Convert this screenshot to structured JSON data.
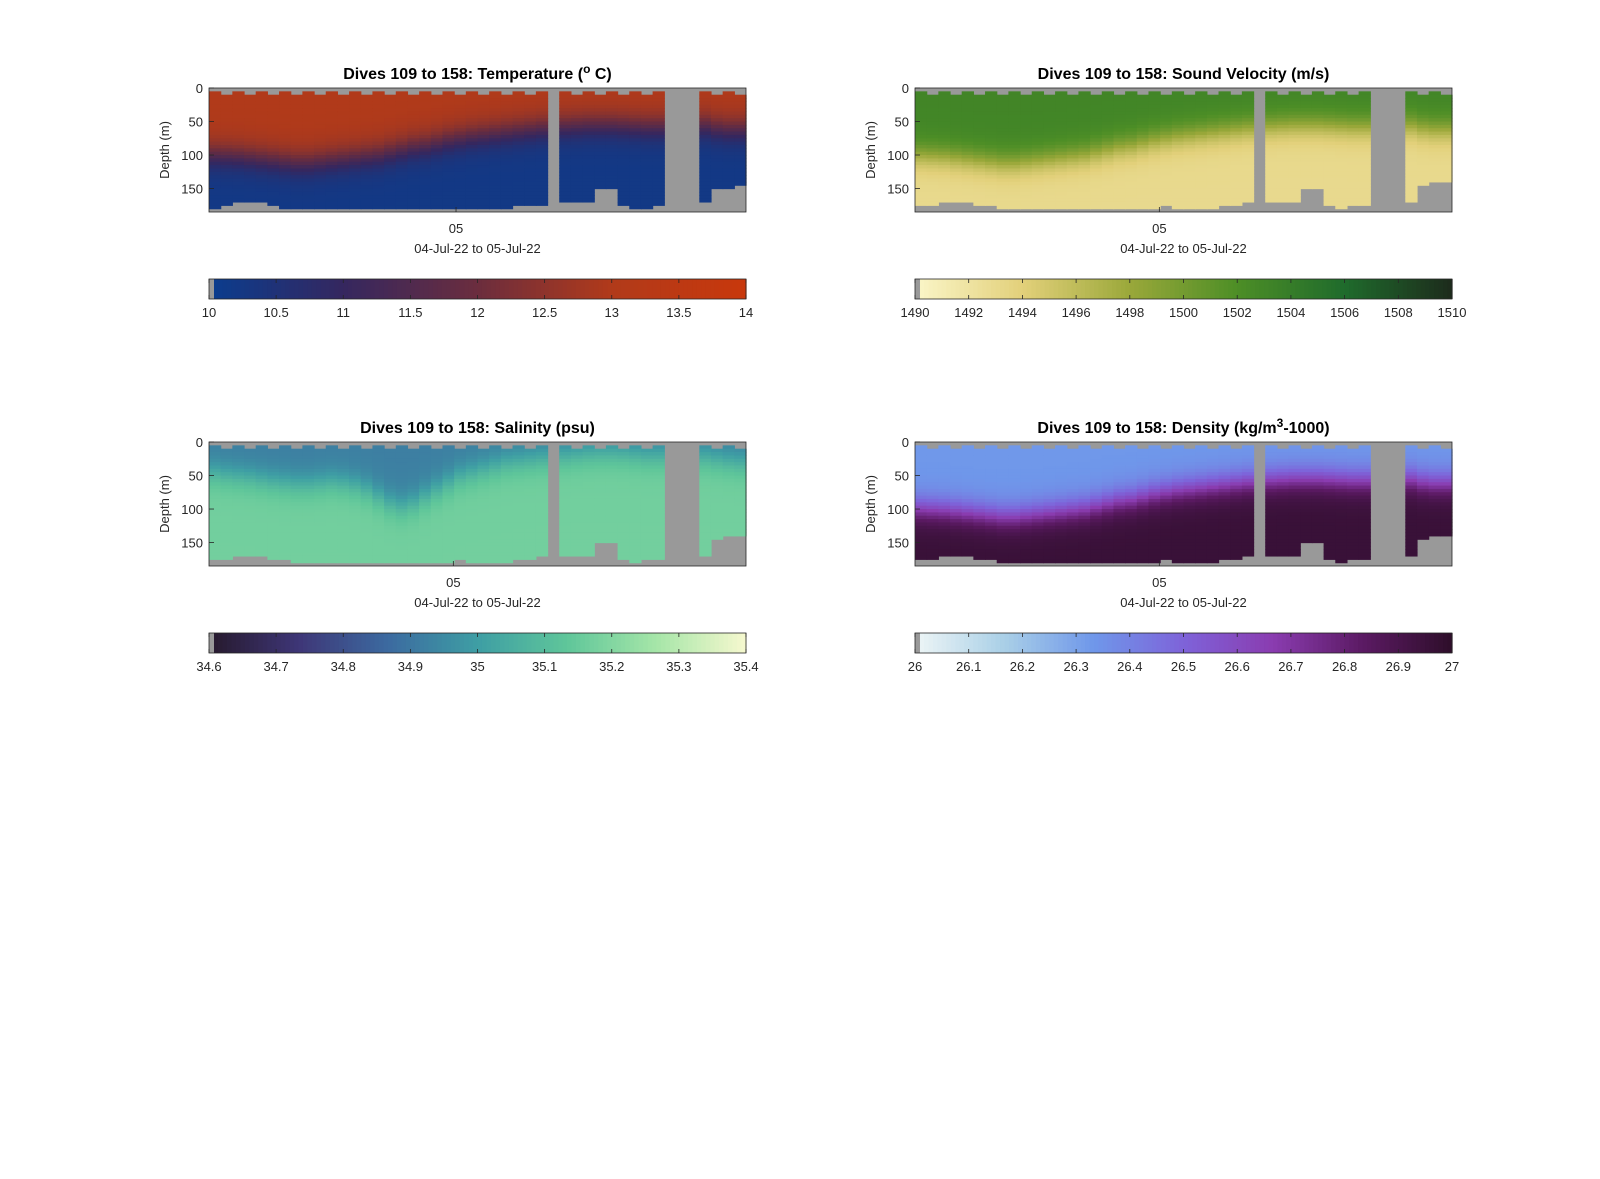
{
  "figure": {
    "background": "#ffffff",
    "missing_color": "#999999"
  },
  "chart_data": [
    {
      "id": "temperature",
      "type": "heatmap",
      "title": "Dives 109 to 158: Temperature (",
      "title_sup": "o",
      "title_suffix": " C)",
      "ylabel": "Depth (m)",
      "xlabel": "04-Jul-22 to 05-Jul-22",
      "x_ticks": [
        "05"
      ],
      "x_tick_fraction": 0.46,
      "ylim": [
        0,
        185
      ],
      "y_ticks": [
        "0",
        "50",
        "100",
        "150"
      ],
      "y_tick_values": [
        0,
        50,
        100,
        150
      ],
      "clim": [
        10,
        14
      ],
      "colorbar_ticks": [
        "10",
        "10.5",
        "11",
        "11.5",
        "12",
        "12.5",
        "13",
        "13.5",
        "14"
      ],
      "colormap": [
        "#0a3d8f",
        "#35275f",
        "#6b2d3e",
        "#b13a1a",
        "#c8380c"
      ],
      "gap_spans": [
        [
          0.641,
          0.66
        ],
        [
          0.84,
          0.918
        ]
      ],
      "bottom_depth": [
        178,
        176,
        172,
        170,
        172,
        176,
        178,
        180,
        179,
        180,
        181,
        180,
        179,
        180,
        181,
        182,
        182,
        181,
        180,
        180,
        179,
        178,
        180,
        182,
        180,
        179,
        176,
        175,
        174,
        173,
        172,
        172,
        172,
        150,
        148,
        175,
        180,
        178,
        176,
        172,
        168,
        170,
        172,
        150,
        148,
        146
      ],
      "surface_value": 13.0,
      "thermocline_depth": [
        100,
        101,
        102,
        104,
        106,
        108,
        110,
        112,
        112,
        110,
        108,
        106,
        104,
        102,
        100,
        96,
        92,
        88,
        86,
        82,
        78,
        75,
        72,
        70,
        68,
        66,
        64,
        62,
        60,
        58,
        57,
        56,
        55,
        55,
        55,
        56,
        57,
        58,
        58,
        58,
        57,
        56,
        56,
        60,
        62,
        62
      ],
      "deep_value": 10.2
    },
    {
      "id": "sound_velocity",
      "type": "heatmap",
      "title": "Dives 109 to 158: Sound Velocity (m/s)",
      "title_sup": "",
      "title_suffix": "",
      "ylabel": "Depth (m)",
      "xlabel": "04-Jul-22 to 05-Jul-22",
      "x_ticks": [
        "05"
      ],
      "x_tick_fraction": 0.455,
      "ylim": [
        0,
        185
      ],
      "y_ticks": [
        "0",
        "50",
        "100",
        "150"
      ],
      "y_tick_values": [
        0,
        50,
        100,
        150
      ],
      "clim": [
        1490,
        1510
      ],
      "colorbar_ticks": [
        "1490",
        "1492",
        "1494",
        "1496",
        "1498",
        "1500",
        "1502",
        "1504",
        "1506",
        "1508",
        "1510"
      ],
      "colormap": [
        "#fbf6c9",
        "#e2d07a",
        "#9aa83a",
        "#4d8e26",
        "#1f6b2c",
        "#1d2b1c"
      ],
      "gap_spans": [
        [
          0.641,
          0.66
        ],
        [
          0.84,
          0.918
        ]
      ],
      "bottom_depth": [
        176,
        174,
        170,
        168,
        170,
        174,
        176,
        178,
        178,
        178,
        180,
        178,
        178,
        178,
        180,
        180,
        180,
        178,
        178,
        178,
        178,
        176,
        178,
        180,
        178,
        178,
        174,
        174,
        172,
        172,
        170,
        170,
        170,
        150,
        148,
        174,
        178,
        176,
        174,
        170,
        166,
        168,
        170,
        145,
        142,
        140
      ],
      "surface_value": 1503,
      "thermocline_depth": [
        100,
        101,
        102,
        104,
        106,
        108,
        110,
        112,
        112,
        110,
        108,
        106,
        104,
        102,
        100,
        96,
        92,
        88,
        86,
        82,
        78,
        75,
        72,
        70,
        68,
        66,
        64,
        62,
        60,
        58,
        57,
        56,
        55,
        55,
        55,
        56,
        57,
        58,
        58,
        58,
        57,
        56,
        56,
        60,
        62,
        62
      ],
      "deep_value": 1493
    },
    {
      "id": "salinity",
      "type": "heatmap",
      "title": "Dives 109 to 158: Salinity (psu)",
      "title_sup": "",
      "title_suffix": "",
      "ylabel": "Depth (m)",
      "xlabel": "04-Jul-22 to 05-Jul-22",
      "x_ticks": [
        "05"
      ],
      "x_tick_fraction": 0.455,
      "ylim": [
        0,
        185
      ],
      "y_ticks": [
        "0",
        "50",
        "100",
        "150"
      ],
      "y_tick_values": [
        0,
        50,
        100,
        150
      ],
      "clim": [
        34.6,
        35.4
      ],
      "colorbar_ticks": [
        "34.6",
        "34.7",
        "34.8",
        "34.9",
        "35",
        "35.1",
        "35.2",
        "35.3",
        "35.4"
      ],
      "colormap": [
        "#26192c",
        "#3e3677",
        "#3c6aa0",
        "#3e9ea4",
        "#5fc69a",
        "#a6e6a8",
        "#f6f8cf"
      ],
      "gap_spans": [
        [
          0.641,
          0.66
        ],
        [
          0.84,
          0.918
        ]
      ],
      "bottom_depth": [
        176,
        174,
        170,
        168,
        170,
        174,
        176,
        178,
        178,
        178,
        180,
        178,
        178,
        178,
        180,
        180,
        180,
        178,
        178,
        178,
        178,
        176,
        178,
        180,
        178,
        178,
        174,
        174,
        172,
        172,
        170,
        170,
        170,
        150,
        148,
        174,
        178,
        176,
        174,
        170,
        166,
        168,
        170,
        145,
        142,
        140
      ],
      "surface_value": 34.92,
      "thermocline_depth": [
        45,
        48,
        50,
        52,
        55,
        58,
        60,
        62,
        62,
        60,
        58,
        60,
        64,
        70,
        80,
        90,
        95,
        90,
        80,
        70,
        60,
        50,
        45,
        40,
        35,
        30,
        28,
        26,
        24,
        22,
        20,
        18,
        16,
        15,
        15,
        16,
        18,
        20,
        20,
        22,
        22,
        22,
        22,
        25,
        28,
        30
      ],
      "deep_value": 35.17
    },
    {
      "id": "density",
      "type": "heatmap",
      "title": "Dives 109 to 158: Density (kg/m",
      "title_sup": "3",
      "title_suffix": "-1000)",
      "ylabel": "Depth (m)",
      "xlabel": "04-Jul-22 to 05-Jul-22",
      "x_ticks": [
        "05"
      ],
      "x_tick_fraction": 0.455,
      "ylim": [
        0,
        185
      ],
      "y_ticks": [
        "0",
        "50",
        "100",
        "150"
      ],
      "y_tick_values": [
        0,
        50,
        100,
        150
      ],
      "clim": [
        26,
        27
      ],
      "colorbar_ticks": [
        "26",
        "26.1",
        "26.2",
        "26.3",
        "26.4",
        "26.5",
        "26.6",
        "26.7",
        "26.8",
        "26.9",
        "27"
      ],
      "colormap": [
        "#eef6f6",
        "#a9cfe7",
        "#6f97ea",
        "#7e63d9",
        "#8a3cb0",
        "#5b1a63",
        "#2e0e2a"
      ],
      "gap_spans": [
        [
          0.641,
          0.66
        ],
        [
          0.84,
          0.918
        ]
      ],
      "bottom_depth": [
        176,
        174,
        170,
        168,
        170,
        174,
        176,
        178,
        178,
        178,
        180,
        178,
        178,
        178,
        180,
        180,
        180,
        178,
        178,
        178,
        178,
        176,
        178,
        180,
        178,
        178,
        174,
        174,
        172,
        172,
        170,
        170,
        170,
        150,
        148,
        174,
        178,
        176,
        174,
        170,
        166,
        168,
        170,
        145,
        142,
        140
      ],
      "surface_value": 26.33,
      "thermocline_depth": [
        100,
        101,
        102,
        104,
        106,
        108,
        110,
        112,
        112,
        110,
        108,
        106,
        104,
        102,
        100,
        96,
        92,
        88,
        86,
        82,
        78,
        75,
        72,
        70,
        68,
        66,
        64,
        62,
        60,
        58,
        57,
        56,
        55,
        55,
        55,
        56,
        57,
        58,
        58,
        58,
        57,
        56,
        56,
        60,
        62,
        62
      ],
      "deep_value": 26.96
    }
  ]
}
